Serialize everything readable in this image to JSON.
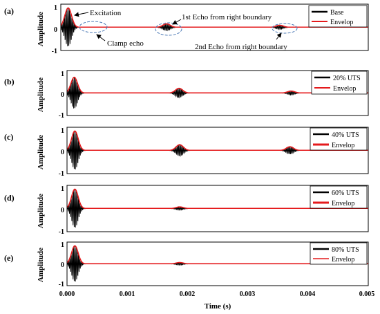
{
  "figure": {
    "xlabel": "Time (s)",
    "xticks": [
      "0.000",
      "0.001",
      "0.002",
      "0.003",
      "0.004",
      "0.005"
    ],
    "xlim": [
      0,
      0.005
    ],
    "colors": {
      "signal": "#000000",
      "envelope": "#e41a1c",
      "ellipse": "#4a78b5",
      "frame": "#000000"
    }
  },
  "chart_data": [
    {
      "type": "line",
      "panel_label": "(a)",
      "ylabel": "Amplitude",
      "ylim": [
        -1,
        1
      ],
      "yticks": [
        "1",
        "0",
        "-1"
      ],
      "grid": false,
      "legend_position": "top-right",
      "series": [
        {
          "name": "Base",
          "color": "#000000",
          "role": "signal"
        },
        {
          "name": "Envelop",
          "color": "#e41a1c",
          "role": "envelope"
        }
      ],
      "excitation": {
        "center": 0.00012,
        "amplitude": 0.95
      },
      "echoes": [
        {
          "center": 0.00172,
          "amplitude": 0.17
        },
        {
          "center": 0.00356,
          "amplitude": 0.1
        }
      ],
      "annotations": [
        "Excitation",
        "Clamp echo",
        "1st Echo from right boundary",
        "2nd Echo from right boundary"
      ]
    },
    {
      "type": "line",
      "panel_label": "(b)",
      "ylabel": "Amplitude",
      "ylim": [
        -1,
        1
      ],
      "yticks": [
        "1",
        "0",
        "-1"
      ],
      "grid": false,
      "legend_position": "top-right",
      "series": [
        {
          "name": "20% UTS",
          "color": "#000000",
          "role": "signal"
        },
        {
          "name": "Envelop",
          "color": "#e41a1c",
          "role": "envelope"
        }
      ],
      "excitation": {
        "center": 0.00012,
        "amplitude": 0.8
      },
      "echoes": [
        {
          "center": 0.00186,
          "amplitude": 0.24
        },
        {
          "center": 0.00372,
          "amplitude": 0.1
        }
      ]
    },
    {
      "type": "line",
      "panel_label": "(c)",
      "ylabel": "Amplitude",
      "ylim": [
        -1,
        1
      ],
      "yticks": [
        "1",
        "0",
        "-1"
      ],
      "grid": false,
      "legend_position": "top-right",
      "series": [
        {
          "name": "40% UTS",
          "color": "#000000",
          "role": "signal"
        },
        {
          "name": "Envelop",
          "color": "#e41a1c",
          "role": "envelope"
        }
      ],
      "excitation": {
        "center": 0.00013,
        "amplitude": 0.95
      },
      "echoes": [
        {
          "center": 0.00187,
          "amplitude": 0.28
        },
        {
          "center": 0.0037,
          "amplitude": 0.18
        }
      ]
    },
    {
      "type": "line",
      "panel_label": "(d)",
      "ylabel": "Amplitude",
      "ylim": [
        -1,
        1
      ],
      "yticks": [
        "1",
        "0",
        "-1"
      ],
      "grid": false,
      "legend_position": "top-right",
      "series": [
        {
          "name": "60% UTS",
          "color": "#000000",
          "role": "signal"
        },
        {
          "name": "Envelop",
          "color": "#e41a1c",
          "role": "envelope"
        }
      ],
      "excitation": {
        "center": 0.00013,
        "amplitude": 0.95
      },
      "echoes": [
        {
          "center": 0.00187,
          "amplitude": 0.08
        }
      ]
    },
    {
      "type": "line",
      "panel_label": "(e)",
      "ylabel": "Amplitude",
      "ylim": [
        -1,
        1
      ],
      "yticks": [
        "1",
        "0",
        "-1"
      ],
      "grid": false,
      "legend_position": "top-right",
      "series": [
        {
          "name": "80% UTS",
          "color": "#000000",
          "role": "signal"
        },
        {
          "name": "Envelop",
          "color": "#e41a1c",
          "role": "envelope"
        }
      ],
      "excitation": {
        "center": 0.00013,
        "amplitude": 0.95
      },
      "echoes": [
        {
          "center": 0.00187,
          "amplitude": 0.07
        }
      ]
    }
  ]
}
